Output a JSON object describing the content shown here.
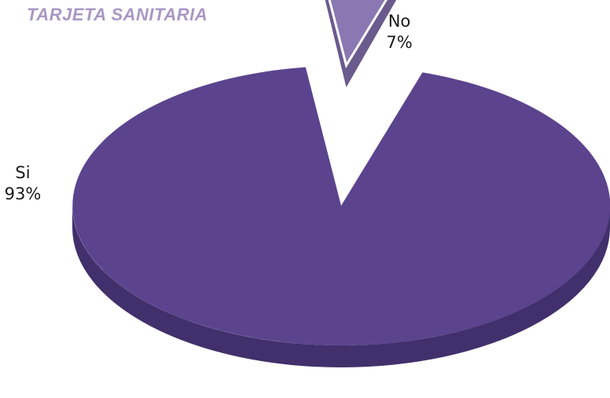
{
  "chart_data": {
    "type": "pie",
    "title": "TARJETA SANITARIA",
    "slices": [
      {
        "label": "Si",
        "value": 93,
        "display": "93%"
      },
      {
        "label": "No",
        "value": 7,
        "display": "7%"
      }
    ],
    "legend": "none",
    "three_d": true,
    "exploded_slice": "No"
  },
  "colors": {
    "title": "#a897c4",
    "si_top": "#5b438e",
    "si_side": "#41306b",
    "no_top": "#8b78b2",
    "no_side": "#6a5a8e"
  }
}
